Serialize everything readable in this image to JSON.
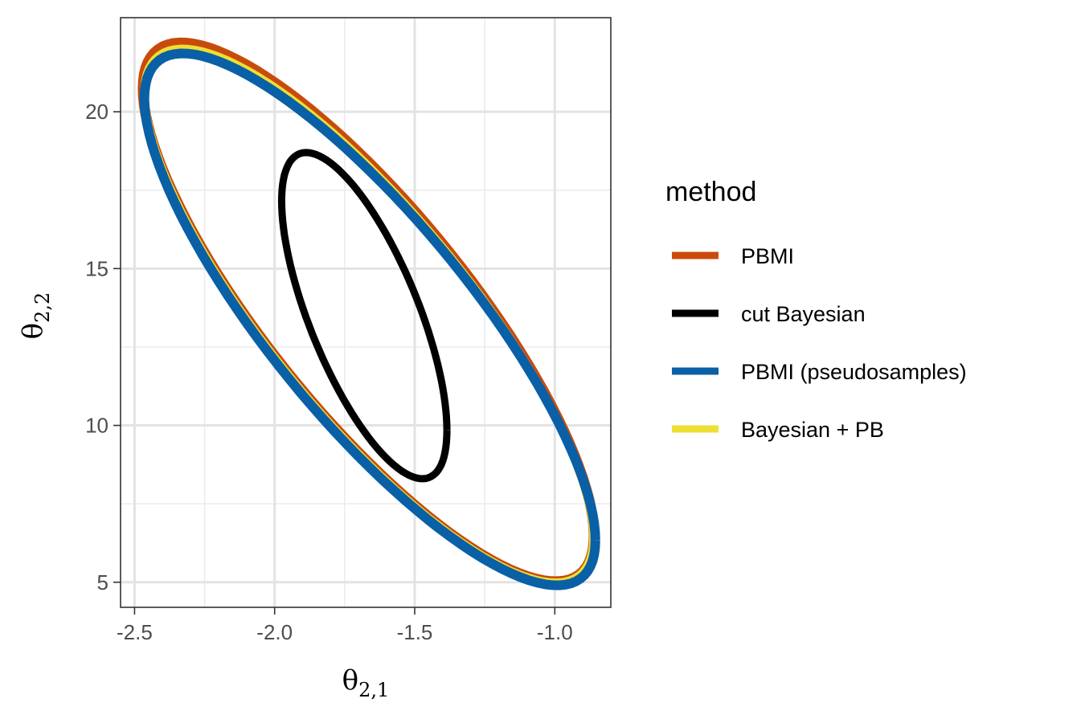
{
  "chart_data": {
    "type": "line",
    "xlabel": {
      "base": "θ",
      "sub": "2,1"
    },
    "ylabel": {
      "base": "θ",
      "sub": "2,2"
    },
    "xlim": [
      -2.55,
      -0.8
    ],
    "ylim": [
      4.2,
      23.0
    ],
    "x_ticks": [
      -2.5,
      -2.0,
      -1.5,
      -1.0
    ],
    "x_tick_labels": [
      "-2.5",
      "-2.0",
      "-1.5",
      "-1.0"
    ],
    "y_ticks": [
      5,
      10,
      15,
      20
    ],
    "y_tick_labels": [
      "5",
      "10",
      "15",
      "20"
    ],
    "x_minor": [
      -2.25,
      -1.75,
      -1.25
    ],
    "y_minor": [
      7.5,
      12.5,
      17.5
    ],
    "grid": true,
    "legend": {
      "title": "method",
      "position": "right"
    },
    "series": [
      {
        "name": "PBMI",
        "color": "#C94B0C",
        "shape": "ellipse",
        "center": [
          -1.665,
          13.61
        ],
        "x_extent": [
          -2.47,
          -0.905
        ],
        "y_extent": [
          5.15,
          22.2
        ]
      },
      {
        "name": "Bayesian + PB",
        "color": "#EEDF33",
        "shape": "ellipse",
        "center": [
          -1.663,
          13.49
        ],
        "x_extent": [
          -2.465,
          -0.905
        ],
        "y_extent": [
          5.0,
          22.0
        ]
      },
      {
        "name": "PBMI (pseudosamples)",
        "color": "#0960A6",
        "shape": "ellipse",
        "center": [
          -1.66,
          13.38
        ],
        "x_extent": [
          -2.465,
          -0.885
        ],
        "y_extent": [
          4.9,
          21.85
        ]
      },
      {
        "name": "cut Bayesian",
        "color": "#000000",
        "shape": "ellipse",
        "center": [
          -1.68,
          13.5
        ],
        "x_extent": [
          -1.975,
          -1.4
        ],
        "y_extent": [
          8.3,
          18.7
        ]
      }
    ],
    "legend_order": [
      "PBMI",
      "cut Bayesian",
      "PBMI (pseudosamples)",
      "Bayesian + PB"
    ]
  }
}
